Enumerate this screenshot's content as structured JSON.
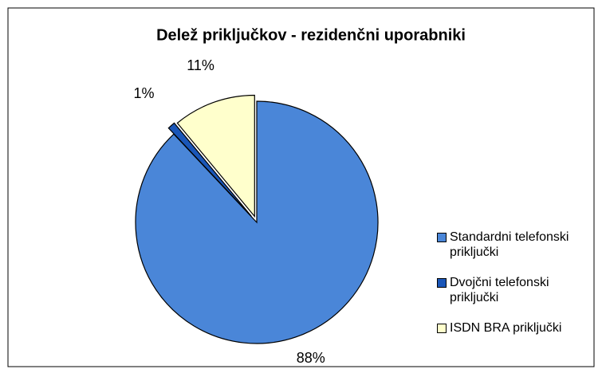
{
  "chart_data": {
    "type": "pie",
    "title": "Delež priključkov - rezidenčni uporabniki",
    "categories": [
      "Standardni telefonski priključki",
      "Dvojčni telefonski priključki",
      "ISDN BRA priključki"
    ],
    "values": [
      88,
      1,
      11
    ],
    "value_labels": [
      "88%",
      "1%",
      "11%"
    ],
    "colors": [
      "#4a86d8",
      "#1a56b8",
      "#ffffcc"
    ],
    "legend": "right"
  }
}
